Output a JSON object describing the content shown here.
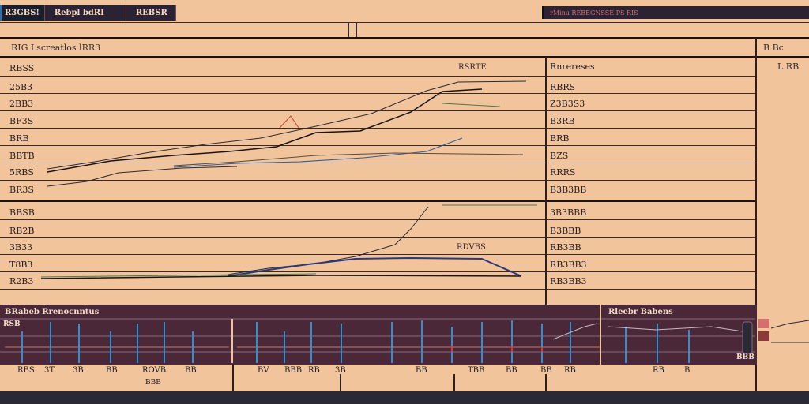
{
  "topbar": {
    "tabs": [
      "R3GBS!",
      "Rebpl bdRI",
      "REBSR"
    ],
    "right_indicator": "rMinu REBEGNSSE PS RIS"
  },
  "main_panel": {
    "title": "RIG Lscreatlos lRR3",
    "left_labels": [
      "RBSS",
      "25B3",
      "2BB3",
      "BF3S",
      "BRB",
      "BBTB",
      "5RBS",
      "BR3S",
      "BBSB",
      "RB2B",
      "3B33",
      "T8B3",
      "R2B3"
    ],
    "annotation_top": "RSRTE",
    "annotation_mid": "RDVBS"
  },
  "right_panel": {
    "header": "Rnrereses",
    "labels": [
      "RBRS",
      "Z3B3S3",
      "B3RB",
      "BRB",
      "BZS",
      "RRRS",
      "B3B3BB",
      "3B3BBB",
      "B3BBB",
      "RB3BB",
      "RB3BB3",
      "RB3BB3"
    ]
  },
  "far_right": {
    "header": "B Bc",
    "sub": "L RB"
  },
  "bottom_panels": {
    "left_title": "BRabeb Rrenocnntus",
    "right_title": "Rleebr Babens",
    "left_value": "RSB",
    "right_value": "BBB",
    "axis_labels": [
      "RBS",
      "3T",
      "3B",
      "BB",
      "ROVB",
      "BB",
      "BV",
      "BBB",
      "RB",
      "3B",
      "BB",
      "TBB",
      "BB",
      "BB",
      "RB",
      "RB",
      "B"
    ],
    "axis_sub": "BBB"
  },
  "colors": {
    "background": "#f1c49c",
    "dark_panel": "#4a2838",
    "tab_bg": "#2b2233",
    "accent_blue": "#2d8fd6",
    "accent_red": "#d43a3a",
    "accent_green": "#5a9a5a"
  }
}
